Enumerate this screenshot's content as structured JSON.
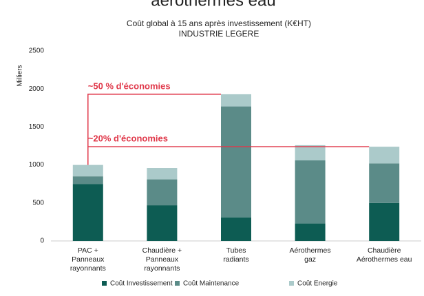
{
  "header": "aérothermes eau",
  "chart_data": {
    "type": "stacked_bar",
    "title": "Coût global à 15 ans après investissement (K€HT)",
    "subtitle": "INDUSTRIE LEGERE",
    "y_label": "Milliers",
    "categories": [
      [
        "PAC +",
        "Panneaux",
        "rayonnants"
      ],
      [
        "Chaudière +",
        "Panneaux",
        "rayonnants"
      ],
      [
        "Tubes",
        "radiants"
      ],
      [
        "Aérothermes",
        "gaz"
      ],
      [
        "Chaudière",
        "Aérothermes eau"
      ]
    ],
    "series": [
      {
        "name": "Coût Investissement",
        "color": "#0d5c53",
        "values": [
          750,
          470,
          310,
          230,
          500
        ]
      },
      {
        "name": "Coût Maintenance",
        "color": "#5b8b88",
        "values": [
          100,
          340,
          1460,
          830,
          520
        ]
      },
      {
        "name": "Coût Energie",
        "color": "#abcaca",
        "values": [
          150,
          150,
          160,
          200,
          220
        ]
      }
    ],
    "ylim": [
      0,
      2500
    ],
    "yticks": [
      0,
      500,
      1000,
      1500,
      2000,
      2500
    ],
    "annotations": [
      {
        "text": "~50 % d'économies",
        "color": "#e0384a"
      },
      {
        "text": "~20% d'économies",
        "color": "#e0384a"
      }
    ],
    "legend": "bottom"
  }
}
